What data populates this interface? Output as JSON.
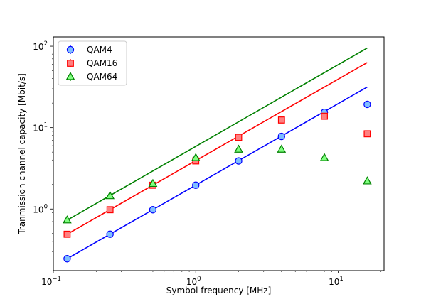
{
  "chart_data": {
    "type": "scatter",
    "title": "",
    "xlabel": "Symbol frequency [MHz]",
    "ylabel": "Tranmission channel capacity [Mbit/s]",
    "xscale": "log",
    "yscale": "log",
    "xlim": [
      0.1,
      21
    ],
    "ylim": [
      0.175,
      130
    ],
    "grid": false,
    "legend_position": "top-left",
    "xticks": [
      {
        "value": 0.1,
        "base": "10",
        "exp": "−1"
      },
      {
        "value": 1,
        "base": "10",
        "exp": "0"
      },
      {
        "value": 10,
        "base": "10",
        "exp": "1"
      }
    ],
    "yticks": [
      {
        "value": 1,
        "base": "10",
        "exp": "0"
      },
      {
        "value": 10,
        "base": "10",
        "exp": "1"
      },
      {
        "value": 100,
        "base": "10",
        "exp": "2"
      }
    ],
    "series": [
      {
        "name": "QAM4",
        "color": "#0000ff",
        "marker": "circle",
        "marker_face": "#7fbfff",
        "marker_edge": "#0000ff",
        "x": [
          0.125,
          0.25,
          0.5,
          1,
          2,
          4,
          8,
          16
        ],
        "y": [
          0.245,
          0.49,
          0.98,
          1.96,
          3.9,
          7.8,
          15.4,
          19.3
        ],
        "fit": {
          "x": [
            0.125,
            16
          ],
          "y": [
            0.245,
            31.5
          ]
        }
      },
      {
        "name": "QAM16",
        "color": "#ff0000",
        "marker": "square",
        "marker_face": "#ff8080",
        "marker_edge": "#ff0000",
        "x": [
          0.125,
          0.25,
          0.5,
          1,
          2,
          4,
          8,
          16
        ],
        "y": [
          0.49,
          0.98,
          1.96,
          3.9,
          7.6,
          12.4,
          13.8,
          8.4
        ],
        "fit": {
          "x": [
            0.125,
            16
          ],
          "y": [
            0.49,
            63
          ]
        }
      },
      {
        "name": "QAM64",
        "color": "#008000",
        "marker": "triangle",
        "marker_face": "#80ff80",
        "marker_edge": "#008000",
        "x": [
          0.125,
          0.25,
          0.5,
          1,
          2,
          4,
          8,
          16
        ],
        "y": [
          0.73,
          1.45,
          2.05,
          4.25,
          5.4,
          5.4,
          4.25,
          2.2
        ],
        "fit": {
          "x": [
            0.125,
            16
          ],
          "y": [
            0.73,
            95
          ]
        }
      }
    ]
  }
}
